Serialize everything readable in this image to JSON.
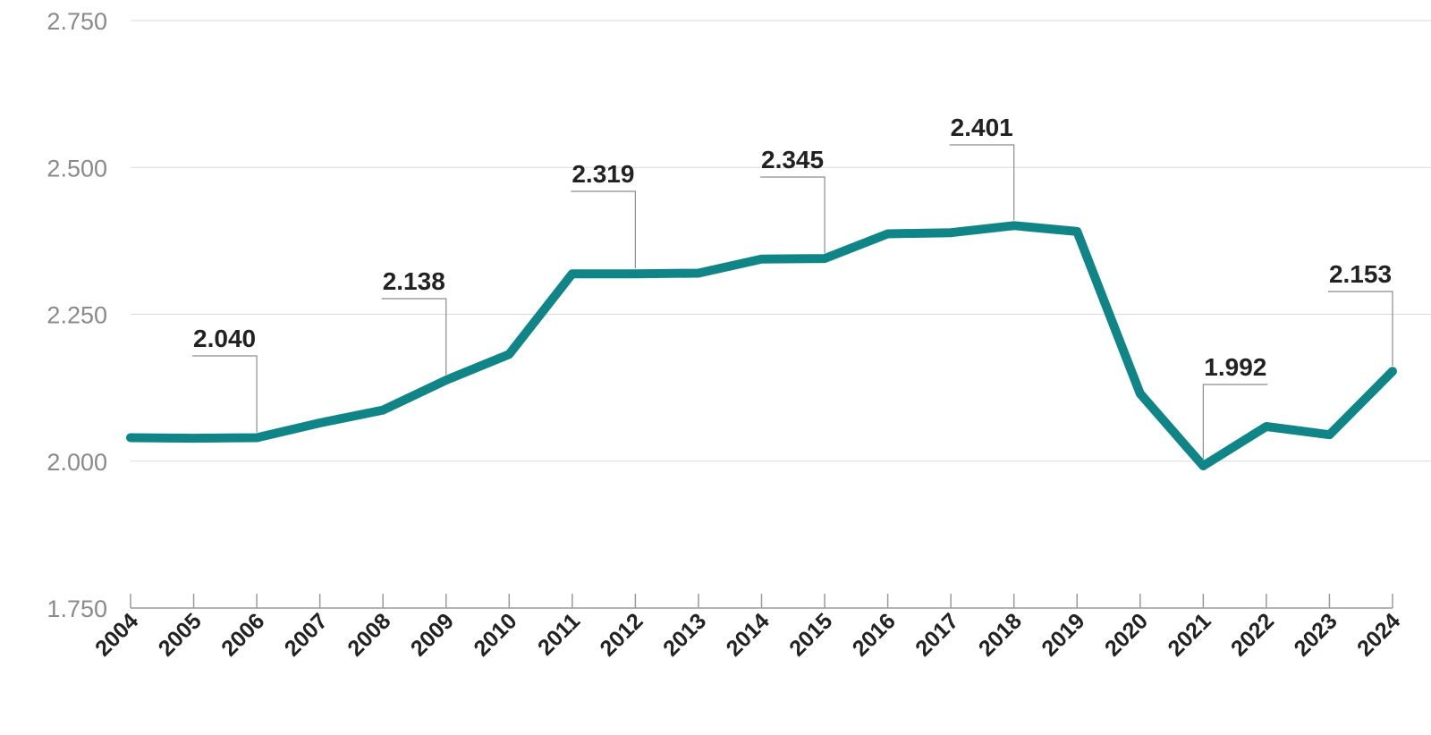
{
  "chart_data": {
    "type": "line",
    "title": "",
    "xlabel": "",
    "ylabel": "",
    "x": [
      "2004",
      "2005",
      "2006",
      "2007",
      "2008",
      "2009",
      "2010",
      "2011",
      "2012",
      "2013",
      "2014",
      "2015",
      "2016",
      "2017",
      "2018",
      "2019",
      "2020",
      "2021",
      "2022",
      "2023",
      "2024"
    ],
    "series": [
      {
        "values": [
          2040,
          2039,
          2040,
          2065,
          2087,
          2138,
          2182,
          2319,
          2319,
          2320,
          2344,
          2345,
          2387,
          2389,
          2401,
          2391,
          2115,
          1992,
          2059,
          2045,
          2153
        ],
        "color": "#0f8587"
      }
    ],
    "ylim": [
      1750,
      2750
    ],
    "y_ticks": [
      "1.750",
      "2.000",
      "2.250",
      "2.500",
      "2.750"
    ],
    "y_tick_values": [
      1750,
      2000,
      2250,
      2500,
      2750
    ],
    "grid": true,
    "annotations": [
      {
        "year": "2006",
        "text": "2.040"
      },
      {
        "year": "2009",
        "text": "2.138"
      },
      {
        "year": "2012",
        "text": "2.319"
      },
      {
        "year": "2015",
        "text": "2.345"
      },
      {
        "year": "2018",
        "text": "2.401"
      },
      {
        "year": "2021",
        "text": "1.992"
      },
      {
        "year": "2024",
        "text": "2.153"
      }
    ]
  }
}
